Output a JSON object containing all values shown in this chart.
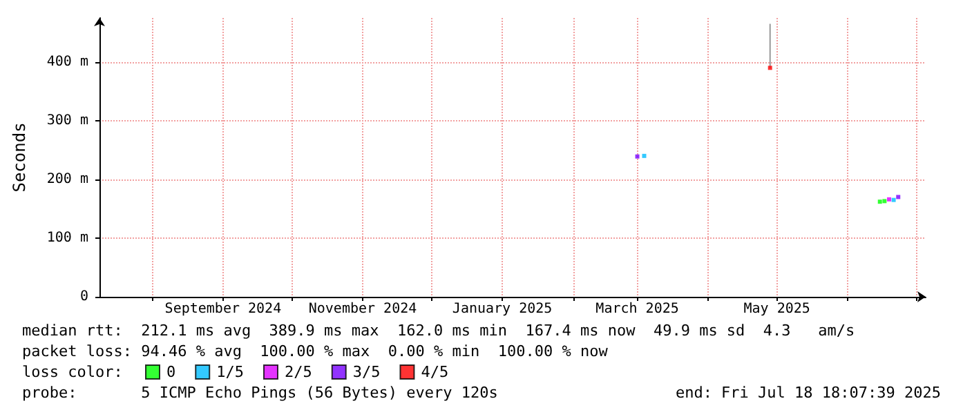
{
  "chart_data": {
    "type": "scatter",
    "ylabel": "Seconds",
    "legend_title": "loss color:",
    "legend": "bottom",
    "grid": true,
    "marker": "square",
    "xlim": [
      "2024-07-09",
      "2025-07-05"
    ],
    "xticks": [
      {
        "value": "2024-08-01",
        "label": null
      },
      {
        "value": "2024-09-01",
        "label": "September 2024"
      },
      {
        "value": "2024-10-01",
        "label": null
      },
      {
        "value": "2024-11-01",
        "label": "November 2024"
      },
      {
        "value": "2024-12-01",
        "label": null
      },
      {
        "value": "2025-01-01",
        "label": "January 2025"
      },
      {
        "value": "2025-02-01",
        "label": null
      },
      {
        "value": "2025-03-01",
        "label": "March 2025"
      },
      {
        "value": "2025-04-01",
        "label": null
      },
      {
        "value": "2025-05-01",
        "label": "May 2025"
      },
      {
        "value": "2025-06-01",
        "label": null
      },
      {
        "value": "2025-07-01",
        "label": null
      }
    ],
    "ylim": [
      0,
      475
    ],
    "yticks": [
      0,
      {
        "value": 100,
        "label": "100 m"
      },
      {
        "value": 200,
        "label": "200 m"
      },
      {
        "value": 300,
        "label": "300 m"
      },
      {
        "value": 400,
        "label": "400 m"
      }
    ],
    "series": [
      {
        "type": "line",
        "marker": "none",
        "color": "#999999",
        "x": [
          "2025-04-28",
          "2025-04-28"
        ],
        "values": [
          390,
          465
        ]
      },
      {
        "name": "0",
        "color": "#00ff00",
        "x": [
          "2025-06-15",
          "2025-06-17"
        ],
        "values": [
          162,
          163
        ]
      },
      {
        "name": "1/5",
        "color": "#00bbff",
        "x": [
          "2025-03-04",
          "2025-06-21"
        ],
        "values": [
          240,
          165
        ]
      },
      {
        "name": "2/5",
        "color": "#dd00ff",
        "x": [
          "2025-06-19"
        ],
        "values": [
          166
        ]
      },
      {
        "name": "3/5",
        "color": "#7700ff",
        "x": [
          "2025-03-01",
          "2025-06-23"
        ],
        "values": [
          239,
          170
        ]
      },
      {
        "name": "4/5",
        "color": "#ff0000",
        "x": [
          "2025-04-28"
        ],
        "values": [
          390
        ]
      }
    ],
    "annotations": [
      "median rtt:  212.1 ms avg  389.9 ms max  162.0 ms min  167.4 ms now  49.9 ms sd  4.3   am/s",
      "packet loss: 94.46 % avg  100.00 % max  0.00 % min  100.00 % now",
      "probe:       5 ICMP Echo Pings (56 Bytes) every 120s",
      "end: Fri Jul 18 18:07:39 2025"
    ]
  }
}
